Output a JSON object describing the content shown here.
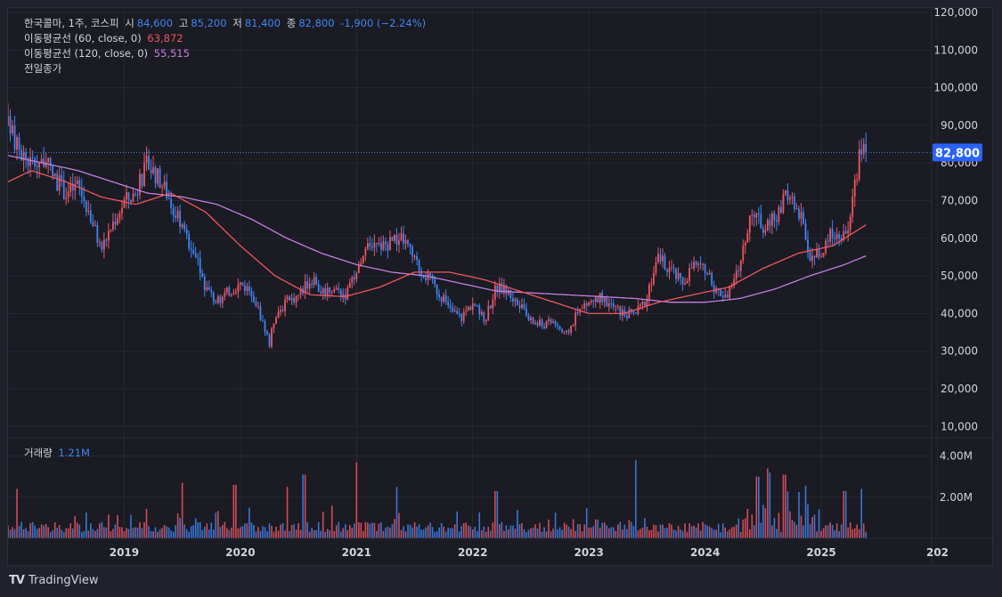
{
  "header": {
    "symbol_line": "한국콜마, 1주, 코스피",
    "open_label": "시",
    "open_value": "84,600",
    "high_label": "고",
    "high_value": "85,200",
    "low_label": "저",
    "low_value": "81,400",
    "close_label": "종",
    "close_value": "82,800",
    "change_value": "-1,900 (−2.24%)",
    "ma60_label": "이동평균선 (60, close, 0)",
    "ma60_value": "63,872",
    "ma120_label": "이동평균선 (120, close, 0)",
    "ma120_value": "55,515",
    "prev_close_label": "전일종가"
  },
  "volume_legend": {
    "label": "거래량",
    "value": "1.21M"
  },
  "price_tag": "82,800",
  "footer": {
    "logo_text": "TV",
    "brand": "TradingView"
  },
  "colors": {
    "up": "#f05560",
    "down": "#3f86f3",
    "ma60": "#f05560",
    "ma120": "#c37fe0",
    "price_line": "#3f86f3",
    "grid": "#262833"
  },
  "chart_data": {
    "type": "candlestick",
    "interval": "1 week",
    "x_ticks": [
      "2019",
      "2020",
      "2021",
      "2022",
      "2023",
      "2024",
      "2025",
      "202"
    ],
    "x_range": [
      2018.0,
      2025.95
    ],
    "y_ticks": [
      "10,000",
      "20,000",
      "30,000",
      "40,000",
      "50,000",
      "60,000",
      "70,000",
      "80,000",
      "90,000",
      "100,000",
      "110,000",
      "120,000"
    ],
    "y_range": [
      7000,
      120000
    ],
    "last_close": 82800,
    "price_anchors": [
      [
        2018.0,
        90000
      ],
      [
        2018.1,
        83000
      ],
      [
        2018.2,
        80000
      ],
      [
        2018.3,
        81000
      ],
      [
        2018.4,
        76000
      ],
      [
        2018.5,
        72000
      ],
      [
        2018.6,
        74000
      ],
      [
        2018.7,
        67000
      ],
      [
        2018.8,
        57000
      ],
      [
        2018.9,
        64000
      ],
      [
        2019.0,
        70000
      ],
      [
        2019.1,
        72000
      ],
      [
        2019.2,
        80000
      ],
      [
        2019.3,
        76000
      ],
      [
        2019.4,
        70000
      ],
      [
        2019.5,
        62000
      ],
      [
        2019.6,
        57000
      ],
      [
        2019.7,
        47000
      ],
      [
        2019.8,
        43000
      ],
      [
        2019.9,
        46000
      ],
      [
        2020.0,
        48000
      ],
      [
        2020.1,
        46000
      ],
      [
        2020.2,
        37000
      ],
      [
        2020.25,
        32000
      ],
      [
        2020.3,
        40000
      ],
      [
        2020.4,
        43000
      ],
      [
        2020.5,
        45000
      ],
      [
        2020.6,
        49000
      ],
      [
        2020.7,
        46000
      ],
      [
        2020.8,
        47000
      ],
      [
        2020.9,
        45000
      ],
      [
        2021.0,
        50000
      ],
      [
        2021.1,
        57000
      ],
      [
        2021.2,
        58000
      ],
      [
        2021.3,
        59000
      ],
      [
        2021.4,
        60000
      ],
      [
        2021.5,
        54000
      ],
      [
        2021.6,
        50000
      ],
      [
        2021.7,
        46000
      ],
      [
        2021.8,
        41000
      ],
      [
        2021.9,
        39000
      ],
      [
        2022.0,
        43000
      ],
      [
        2022.1,
        38000
      ],
      [
        2022.2,
        47000
      ],
      [
        2022.3,
        46000
      ],
      [
        2022.4,
        42000
      ],
      [
        2022.5,
        38000
      ],
      [
        2022.6,
        37000
      ],
      [
        2022.7,
        38000
      ],
      [
        2022.8,
        34000
      ],
      [
        2022.9,
        40000
      ],
      [
        2023.0,
        43000
      ],
      [
        2023.1,
        44000
      ],
      [
        2023.2,
        42000
      ],
      [
        2023.3,
        40000
      ],
      [
        2023.4,
        40000
      ],
      [
        2023.5,
        44000
      ],
      [
        2023.6,
        55000
      ],
      [
        2023.7,
        52000
      ],
      [
        2023.8,
        48000
      ],
      [
        2023.9,
        53000
      ],
      [
        2024.0,
        51000
      ],
      [
        2024.1,
        46000
      ],
      [
        2024.2,
        45000
      ],
      [
        2024.3,
        53000
      ],
      [
        2024.4,
        68000
      ],
      [
        2024.5,
        63000
      ],
      [
        2024.6,
        65000
      ],
      [
        2024.7,
        72000
      ],
      [
        2024.8,
        68000
      ],
      [
        2024.9,
        56000
      ],
      [
        2025.0,
        55000
      ],
      [
        2025.1,
        62000
      ],
      [
        2025.2,
        60000
      ],
      [
        2025.25,
        66000
      ],
      [
        2025.3,
        76000
      ],
      [
        2025.35,
        86000
      ],
      [
        2025.4,
        82800
      ]
    ],
    "ma60": [
      [
        2018.0,
        75000
      ],
      [
        2018.2,
        78000
      ],
      [
        2018.5,
        75000
      ],
      [
        2018.8,
        71000
      ],
      [
        2019.1,
        69000
      ],
      [
        2019.4,
        72000
      ],
      [
        2019.7,
        67000
      ],
      [
        2020.0,
        58000
      ],
      [
        2020.3,
        50000
      ],
      [
        2020.6,
        45000
      ],
      [
        2020.9,
        44500
      ],
      [
        2021.2,
        47000
      ],
      [
        2021.5,
        51000
      ],
      [
        2021.8,
        51000
      ],
      [
        2022.1,
        49000
      ],
      [
        2022.4,
        46000
      ],
      [
        2022.7,
        43000
      ],
      [
        2023.0,
        40000
      ],
      [
        2023.3,
        40000
      ],
      [
        2023.6,
        43000
      ],
      [
        2023.9,
        45000
      ],
      [
        2024.2,
        47000
      ],
      [
        2024.5,
        52000
      ],
      [
        2024.8,
        56000
      ],
      [
        2025.1,
        58000
      ],
      [
        2025.4,
        63872
      ]
    ],
    "ma120": [
      [
        2018.0,
        82000
      ],
      [
        2018.3,
        80000
      ],
      [
        2018.6,
        78000
      ],
      [
        2018.9,
        75000
      ],
      [
        2019.2,
        72000
      ],
      [
        2019.5,
        71000
      ],
      [
        2019.8,
        69000
      ],
      [
        2020.1,
        65000
      ],
      [
        2020.4,
        60000
      ],
      [
        2020.7,
        56000
      ],
      [
        2021.0,
        53000
      ],
      [
        2021.3,
        51000
      ],
      [
        2021.6,
        50000
      ],
      [
        2021.9,
        48000
      ],
      [
        2022.2,
        46000
      ],
      [
        2022.5,
        45500
      ],
      [
        2022.8,
        45000
      ],
      [
        2023.1,
        44500
      ],
      [
        2023.4,
        44000
      ],
      [
        2023.7,
        43000
      ],
      [
        2024.0,
        43000
      ],
      [
        2024.3,
        44000
      ],
      [
        2024.6,
        46500
      ],
      [
        2024.9,
        50000
      ],
      [
        2025.2,
        53000
      ],
      [
        2025.4,
        55515
      ]
    ],
    "volume": {
      "y_ticks": [
        "2.00M",
        "4.00M"
      ],
      "y_range": [
        0,
        4500000
      ],
      "last_value": "1.21M",
      "spikes": [
        [
          2018.08,
          2400000
        ],
        [
          2019.5,
          2700000
        ],
        [
          2019.95,
          2600000
        ],
        [
          2020.4,
          2500000
        ],
        [
          2020.55,
          3100000
        ],
        [
          2021.0,
          3700000
        ],
        [
          2021.35,
          2500000
        ],
        [
          2022.2,
          2300000
        ],
        [
          2023.4,
          3800000
        ],
        [
          2024.45,
          3000000
        ],
        [
          2024.55,
          3200000
        ],
        [
          2024.68,
          3100000
        ],
        [
          2025.2,
          2300000
        ],
        [
          2025.35,
          2400000
        ]
      ]
    }
  }
}
